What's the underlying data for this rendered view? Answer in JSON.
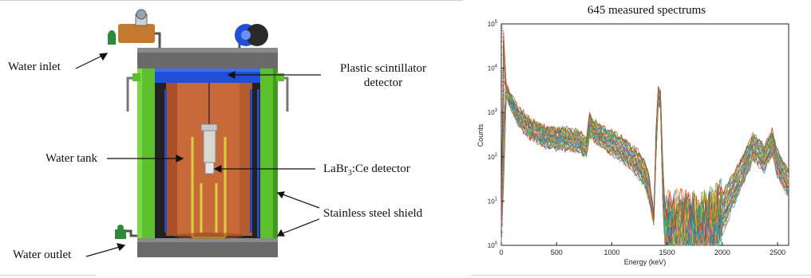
{
  "diagram": {
    "labels": {
      "water_inlet": "Water inlet",
      "plastic_scintillator": "Plastic scintillator",
      "detector": "detector",
      "water_tank": "Water tank",
      "labr3_prefix": "LaBr",
      "labr3_sub": "3",
      "labr3_suffix": ":Ce detector",
      "stainless_shield": "Stainless steel shield",
      "water_outlet": "Water outlet"
    },
    "colors": {
      "shield_green": "#5cc02c",
      "lid_gray": "#5e5e5e",
      "scintillator_blue": "#1f4fd6",
      "tank_copper": "#c8693a",
      "frame_yellow": "#d8d040",
      "valve_green": "#2e8a3a"
    }
  },
  "chart_data": {
    "type": "line",
    "title": "645 measured spectrums",
    "xlabel": "Energy (keV)",
    "ylabel": "Counts",
    "xlim": [
      0,
      2600
    ],
    "ylim_log10": [
      0,
      5
    ],
    "yscale": "log",
    "x_ticks": [
      0,
      500,
      1000,
      1500,
      2000,
      2500
    ],
    "y_tick_base": "10",
    "y_tick_exponents": [
      "0",
      "1",
      "2",
      "3",
      "4",
      "5"
    ],
    "n_spectra": 645,
    "envelope": {
      "x": [
        0,
        20,
        45,
        80,
        150,
        250,
        400,
        600,
        700,
        770,
        800,
        830,
        900,
        1000,
        1100,
        1200,
        1250,
        1300,
        1340,
        1380,
        1400,
        1420,
        1440,
        1460,
        1480,
        1500,
        1600,
        1800,
        1900,
        2000,
        2100,
        2200,
        2280,
        2320,
        2380,
        2420,
        2450,
        2500,
        2560,
        2600
      ],
      "upper": [
        5,
        80000,
        4000,
        2600,
        1300,
        700,
        450,
        400,
        350,
        250,
        900,
        650,
        500,
        350,
        250,
        150,
        120,
        70,
        35,
        5,
        400,
        3500,
        3200,
        80,
        8,
        7,
        7,
        6,
        8,
        15,
        40,
        120,
        320,
        260,
        160,
        280,
        380,
        130,
        70,
        45
      ],
      "lower": [
        1,
        20,
        2200,
        1400,
        550,
        280,
        170,
        150,
        140,
        100,
        300,
        250,
        180,
        120,
        80,
        50,
        35,
        20,
        10,
        3,
        100,
        1500,
        1200,
        10,
        1,
        1,
        1,
        1,
        1,
        2,
        8,
        30,
        90,
        70,
        50,
        80,
        120,
        40,
        20,
        12
      ]
    }
  }
}
